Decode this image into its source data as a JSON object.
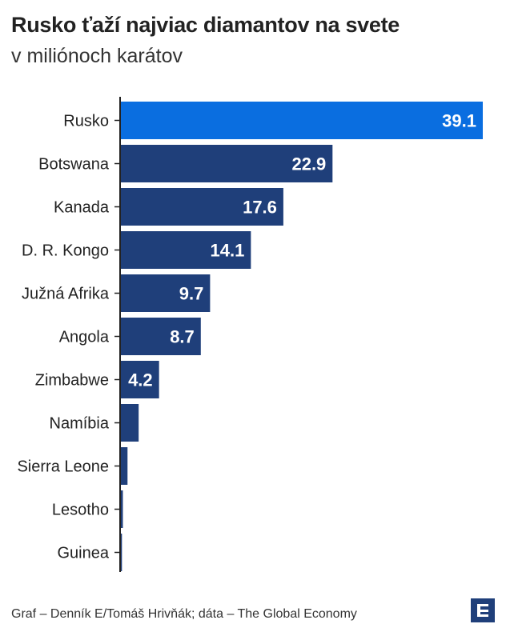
{
  "title": "Rusko ťaží najviac diamantov na svete",
  "subtitle": "v miliónoch karátov",
  "footer": "Graf – Denník E/Tomáš Hrivňák; dáta – The Global Economy",
  "colors": {
    "highlight": "#0a6ee0",
    "bar": "#1f3f7a",
    "axis": "#222222",
    "label_on_bar": "#ffffff"
  },
  "logo_icon": "denník-e-logo",
  "chart_data": {
    "type": "bar",
    "orientation": "horizontal",
    "title": "Rusko ťaží najviac diamantov na svete",
    "subtitle": "v miliónoch karátov",
    "categories": [
      "Rusko",
      "Botswana",
      "Kanada",
      "D. R. Kongo",
      "Južná Afrika",
      "Angola",
      "Zimbabwe",
      "Namíbia",
      "Sierra Leone",
      "Lesotho",
      "Guinea"
    ],
    "values": [
      39.1,
      22.9,
      17.6,
      14.1,
      9.7,
      8.7,
      4.2,
      2.0,
      0.8,
      0.3,
      0.2
    ],
    "data_labels": [
      "39.1",
      "22.9",
      "17.6",
      "14.1",
      "9.7",
      "8.7",
      "4.2",
      "",
      "",
      "",
      ""
    ],
    "highlight_category": "Rusko",
    "xlim": [
      0,
      39.1
    ],
    "grid": false
  }
}
